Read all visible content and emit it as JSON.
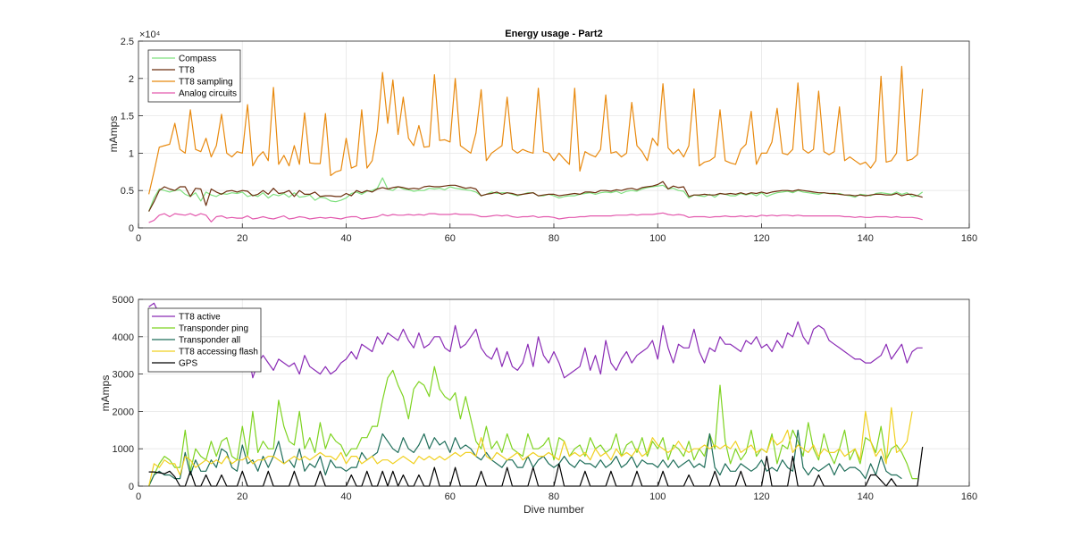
{
  "chart_data": [
    {
      "type": "line",
      "title": "Energy usage - Part2",
      "xlabel": "",
      "ylabel": "mAmps",
      "exponent_label": "×10⁴",
      "xlim": [
        0,
        160
      ],
      "ylim": [
        0,
        25000
      ],
      "xticks": [
        0,
        20,
        40,
        60,
        80,
        100,
        120,
        140,
        160
      ],
      "yticks": [
        0,
        5000,
        10000,
        15000,
        20000,
        25000
      ],
      "ytick_labels": [
        "0",
        "0.5",
        "1",
        "1.5",
        "2",
        "2.5"
      ],
      "grid": true,
      "legend": "top-left",
      "series": [
        {
          "name": "Compass",
          "color": "#7FE07F",
          "x": [
            2,
            3,
            4,
            5,
            6,
            7,
            8,
            9,
            10,
            11,
            12,
            13,
            14,
            15,
            16,
            17,
            18,
            19,
            20,
            21,
            22,
            23,
            24,
            25,
            26,
            27,
            28,
            29,
            30,
            31,
            32,
            33,
            34,
            35,
            36,
            37,
            38,
            39,
            40,
            41,
            42,
            43,
            44,
            45,
            46,
            47,
            48,
            49,
            50,
            51,
            52,
            53,
            54,
            55,
            56,
            57,
            58,
            59,
            60,
            61,
            62,
            63,
            64,
            65,
            66,
            67,
            68,
            69,
            70,
            71,
            72,
            73,
            74,
            75,
            76,
            77,
            78,
            79,
            80,
            81,
            82,
            83,
            84,
            85,
            86,
            87,
            88,
            89,
            90,
            91,
            92,
            93,
            94,
            95,
            96,
            97,
            98,
            99,
            100,
            101,
            102,
            103,
            104,
            105,
            106,
            107,
            108,
            109,
            110,
            111,
            112,
            113,
            114,
            115,
            116,
            117,
            118,
            119,
            120,
            121,
            122,
            123,
            124,
            125,
            126,
            127,
            128,
            129,
            130,
            131,
            132,
            133,
            134,
            135,
            136,
            137,
            138,
            139,
            140,
            141,
            146,
            144,
            142,
            143,
            145,
            147,
            148,
            149,
            150,
            151
          ],
          "y": [
            2200,
            4000,
            5200,
            5000,
            4800,
            5000,
            5100,
            4500,
            4200,
            4700,
            3600,
            4800,
            4400,
            4200,
            4600,
            4500,
            4700,
            4600,
            4800,
            4200,
            4400,
            4200,
            4700,
            4000,
            4500,
            4300,
            4600,
            4100,
            4700,
            4100,
            4200,
            4400,
            3700,
            4100,
            4000,
            3600,
            3500,
            3700,
            4000,
            4600,
            4800,
            4500,
            4900,
            5000,
            5300,
            6700,
            5200,
            5000,
            5500,
            5200,
            5100,
            4900,
            5000,
            5000,
            5300,
            5200,
            5300,
            5100,
            5500,
            5300,
            5200,
            5100,
            5000,
            4800,
            4300,
            4500,
            4800,
            4600,
            4700,
            4700,
            4500,
            4300,
            4500,
            4700,
            4700,
            4300,
            4300,
            4500,
            4300,
            4000,
            4200,
            4300,
            4300,
            4500,
            4600,
            4700,
            4500,
            4700,
            4800,
            4700,
            4900,
            4600,
            4900,
            5000,
            4900,
            5200,
            5400,
            5500,
            5600,
            5700,
            5200,
            5300,
            5000,
            4900,
            4000,
            4400,
            4300,
            4200,
            4500,
            4100,
            4600,
            4500,
            4300,
            4300,
            4600,
            4400,
            4600,
            4300,
            4700,
            4200,
            4500,
            4700,
            4800,
            4900,
            4700,
            5000,
            4800,
            4700,
            4600,
            4500,
            4700,
            4600,
            4500,
            4600,
            4400,
            4300,
            4100,
            4500,
            4400,
            4300,
            4600,
            4700,
            4600,
            4500,
            4800,
            4500,
            4700,
            4200,
            4300,
            4800
          ],
          "note_y": "Compass"
        }
      ]
    }
  ]
}
